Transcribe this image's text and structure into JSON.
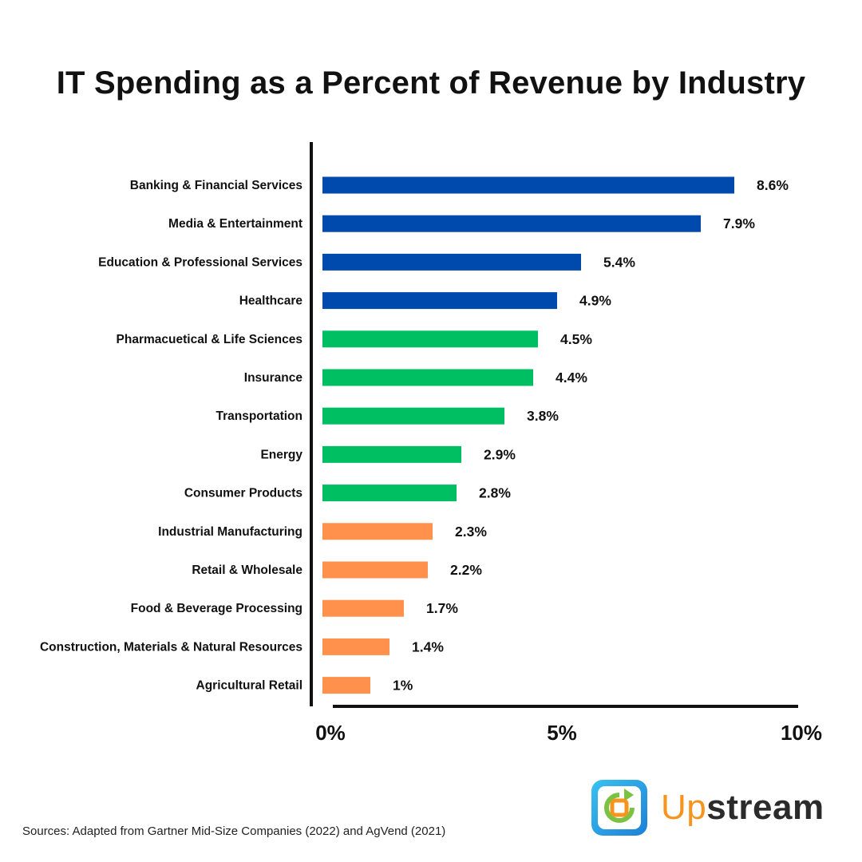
{
  "chart_data": {
    "type": "bar",
    "orientation": "horizontal",
    "title": "IT Spending as a Percent of Revenue by Industry",
    "xlabel": "",
    "ylabel": "",
    "xlim": [
      0,
      10
    ],
    "x_ticks": [
      {
        "value": 0,
        "label": "0%"
      },
      {
        "value": 5,
        "label": "5%"
      },
      {
        "value": 10,
        "label": "10%"
      }
    ],
    "grid": false,
    "categories": [
      "Banking & Financial Services",
      "Media & Entertainment",
      "Education & Professional Services",
      "Healthcare",
      "Pharmacuetical & Life Sciences",
      "Insurance",
      "Transportation",
      "Energy",
      "Consumer Products",
      "Industrial Manufacturing",
      "Retail & Wholesale",
      "Food & Beverage Processing",
      "Construction, Materials & Natural Resources",
      "Agricultural Retail"
    ],
    "values": [
      8.6,
      7.9,
      5.4,
      4.9,
      4.5,
      4.4,
      3.8,
      2.9,
      2.8,
      2.3,
      2.2,
      1.7,
      1.4,
      1
    ],
    "value_labels": [
      "8.6%",
      "7.9%",
      "5.4%",
      "4.9%",
      "4.5%",
      "4.4%",
      "3.8%",
      "2.9%",
      "2.8%",
      "2.3%",
      "2.2%",
      "1.7%",
      "1.4%",
      "1%"
    ],
    "groups": [
      "high",
      "high",
      "high",
      "high",
      "mid",
      "mid",
      "mid",
      "mid",
      "mid",
      "low",
      "low",
      "low",
      "low",
      "low"
    ],
    "group_colors": {
      "high": "#004aad",
      "mid": "#00bf63",
      "low": "#ff914d"
    }
  },
  "source": "Sources: Adapted from Gartner Mid-Size Companies  (2022) and AgVend (2021)",
  "logo": {
    "part1": "Up",
    "part2": "stream"
  }
}
